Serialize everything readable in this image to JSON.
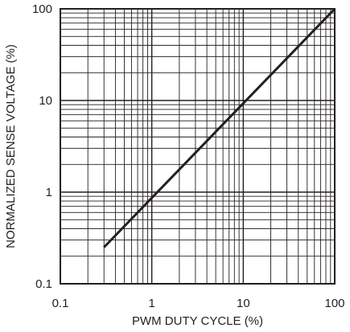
{
  "chart_data": {
    "type": "line",
    "xlabel": "PWM DUTY CYCLE (%)",
    "ylabel": "NORMALIZED SENSE VOLTAGE (%)",
    "x_scale": "log",
    "y_scale": "log",
    "xlim": [
      0.1,
      100
    ],
    "ylim": [
      0.1,
      100
    ],
    "x_ticks": [
      "0.1",
      "1",
      "10",
      "100"
    ],
    "y_ticks": [
      "0.1",
      "1",
      "10",
      "100"
    ],
    "grid": true,
    "series": [
      {
        "x": [
          0.3,
          100
        ],
        "y": [
          0.25,
          100
        ]
      }
    ],
    "colors": {
      "line": "#231f20",
      "grid": "#231f20",
      "text": "#231f20",
      "background": "#ffffff"
    }
  }
}
